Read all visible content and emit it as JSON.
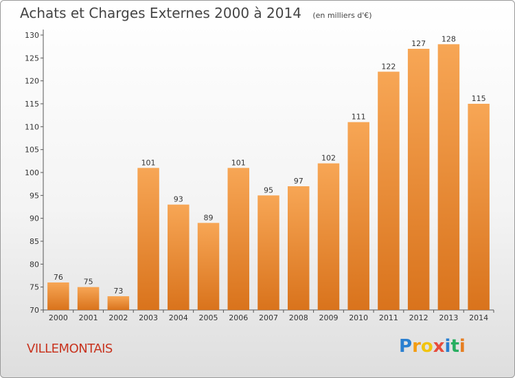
{
  "title": "Achats et Charges Externes 2000 à 2014",
  "unit_label": "(en milliers d'€)",
  "commune": "VILLEMONTAIS",
  "logo": {
    "text": "Proxiti",
    "letters": [
      {
        "ch": "P",
        "color": "#2a7fd0"
      },
      {
        "ch": "r",
        "color": "#f39c12"
      },
      {
        "ch": "o",
        "color": "#f1c40f"
      },
      {
        "ch": "x",
        "color": "#e74c3c"
      },
      {
        "ch": "i",
        "color": "#2a7fd0"
      },
      {
        "ch": "t",
        "color": "#27ae60"
      },
      {
        "ch": "i",
        "color": "#e67e22"
      }
    ]
  },
  "colors": {
    "bar_top": "#f7a655",
    "bar_bottom": "#d9731c",
    "axis": "#555555",
    "grid": "#dddddd",
    "title": "#444444",
    "commune": "#c8341f"
  },
  "chart_data": {
    "type": "bar",
    "categories": [
      "2000",
      "2001",
      "2002",
      "2003",
      "2004",
      "2005",
      "2006",
      "2007",
      "2008",
      "2009",
      "2010",
      "2011",
      "2012",
      "2013",
      "2014"
    ],
    "values": [
      76,
      75,
      73,
      101,
      93,
      89,
      101,
      95,
      97,
      102,
      111,
      122,
      127,
      128,
      115
    ],
    "ylim": [
      70,
      130
    ],
    "yticks": [
      70,
      75,
      80,
      85,
      90,
      95,
      100,
      105,
      110,
      115,
      120,
      125,
      130
    ],
    "data_labels": true,
    "grid": false
  }
}
